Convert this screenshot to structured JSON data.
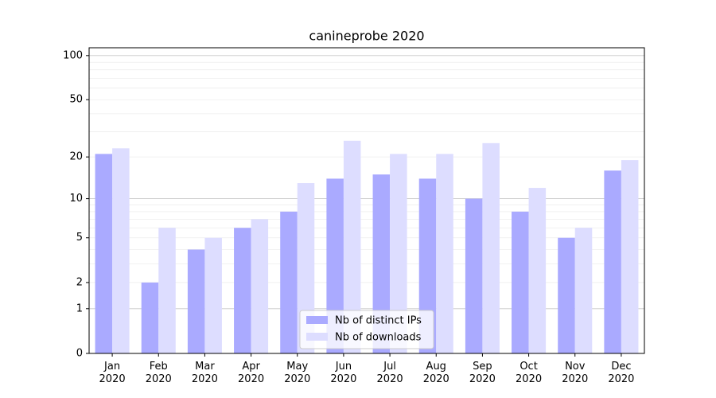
{
  "chart_data": {
    "type": "bar",
    "title": "canineprobe 2020",
    "categories": [
      "Jan 2020",
      "Feb 2020",
      "Mar 2020",
      "Apr 2020",
      "May 2020",
      "Jun 2020",
      "Jul 2020",
      "Aug 2020",
      "Sep 2020",
      "Oct 2020",
      "Nov 2020",
      "Dec 2020"
    ],
    "series": [
      {
        "name": "Nb of distinct IPs",
        "color": "#aaaaff",
        "values": [
          21,
          2,
          4,
          6,
          8,
          14,
          15,
          14,
          10,
          8,
          5,
          16
        ]
      },
      {
        "name": "Nb of downloads",
        "color": "#ddddff",
        "values": [
          23,
          6,
          5,
          7,
          13,
          26,
          21,
          21,
          25,
          12,
          6,
          19
        ]
      }
    ],
    "yscale": "log1p",
    "ylim": [
      0,
      113
    ],
    "yticks": [
      0,
      1,
      2,
      5,
      10,
      20,
      50,
      100
    ],
    "yminorticks": [
      3,
      4,
      6,
      7,
      8,
      9,
      30,
      40,
      60,
      70,
      80,
      90
    ],
    "grid": true,
    "legend": "lower center"
  }
}
